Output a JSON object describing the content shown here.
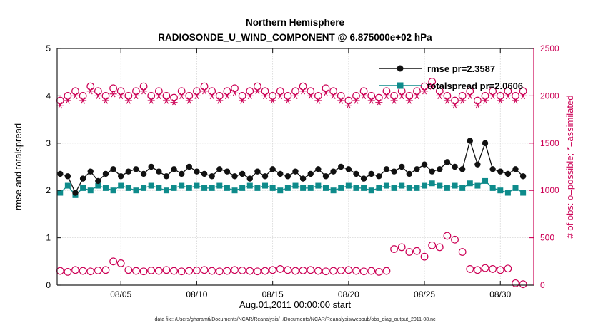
{
  "chart_data": {
    "type": "line",
    "title": "Northern Hemisphere",
    "subtitle": "RADIOSONDE_U_WIND_COMPONENT @ 6.875000e+02 hPa",
    "xlabel": "Aug.01,2011 00:00:00 start",
    "ylabel_left": "rmse and totalspread",
    "ylabel_right": "# of obs: o=possible; *=assimilated",
    "footer": "data file: /Users/gharamti/Documents/NCAR/Reanalysis/~/Documents/NCAR/Reanalysis/webpub/obs_diag_output_2011-08.nc",
    "grid": true,
    "xlim": [
      0.8,
      32.2
    ],
    "ylim_left": [
      0,
      5
    ],
    "ylim_right": [
      0,
      2500
    ],
    "x_ticks": [
      {
        "v": 5,
        "label": "08/05"
      },
      {
        "v": 10,
        "label": "08/10"
      },
      {
        "v": 15,
        "label": "08/15"
      },
      {
        "v": 20,
        "label": "08/20"
      },
      {
        "v": 25,
        "label": "08/25"
      },
      {
        "v": 30,
        "label": "08/30"
      }
    ],
    "y_ticks_left": [
      0,
      1,
      2,
      3,
      4,
      5
    ],
    "y_ticks_right": [
      0,
      500,
      1000,
      1500,
      2000,
      2500
    ],
    "x_start": 1,
    "x_step": 0.5,
    "colors": {
      "rmse": "#111111",
      "totalspread": "#0e8b8b",
      "obs": "#cc0055",
      "grid": "#d6d6d6",
      "axis": "#222222"
    },
    "legend": [
      {
        "label": "rmse pr=2.3587",
        "marker": "circle"
      },
      {
        "label": "totalspread pr=2.0606",
        "marker": "square"
      }
    ],
    "series": {
      "rmse": [
        2.35,
        2.3,
        1.95,
        2.25,
        2.4,
        2.2,
        2.35,
        2.45,
        2.3,
        2.4,
        2.45,
        2.35,
        2.5,
        2.4,
        2.3,
        2.45,
        2.35,
        2.5,
        2.4,
        2.35,
        2.3,
        2.45,
        2.4,
        2.3,
        2.35,
        2.25,
        2.4,
        2.3,
        2.45,
        2.35,
        2.3,
        2.4,
        2.25,
        2.35,
        2.45,
        2.3,
        2.4,
        2.5,
        2.45,
        2.35,
        2.25,
        2.35,
        2.3,
        2.45,
        2.4,
        2.5,
        2.35,
        2.45,
        2.55,
        2.4,
        2.45,
        2.6,
        2.5,
        2.45,
        3.05,
        2.55,
        3.0,
        2.45,
        2.4,
        2.35,
        2.45,
        2.3
      ],
      "totalspread": [
        1.95,
        2.1,
        1.9,
        2.05,
        2.0,
        2.1,
        2.05,
        2.0,
        2.1,
        2.05,
        2.0,
        2.05,
        2.1,
        2.05,
        2.0,
        2.05,
        2.1,
        2.05,
        2.1,
        2.05,
        2.05,
        2.1,
        2.05,
        2.0,
        2.05,
        2.1,
        2.05,
        2.1,
        2.05,
        2.0,
        2.05,
        2.1,
        2.05,
        2.05,
        2.1,
        2.05,
        2.0,
        2.05,
        2.1,
        2.05,
        2.05,
        2.0,
        2.05,
        2.1,
        2.05,
        2.1,
        2.05,
        2.05,
        2.1,
        2.15,
        2.1,
        2.05,
        2.1,
        2.05,
        2.15,
        2.1,
        2.2,
        2.05,
        2.0,
        1.95,
        2.05,
        1.95
      ],
      "possible": [
        1950,
        2000,
        2050,
        2000,
        2100,
        2050,
        2000,
        2080,
        2050,
        2000,
        2050,
        2100,
        2000,
        2050,
        2000,
        1980,
        2050,
        2000,
        2050,
        2100,
        2050,
        2000,
        2050,
        2080,
        2000,
        2050,
        2100,
        2050,
        2000,
        2050,
        2000,
        2050,
        2100,
        2050,
        2000,
        2080,
        2050,
        2000,
        1950,
        2000,
        2050,
        2000,
        1980,
        2050,
        2000,
        2050,
        2000,
        2050,
        2100,
        2150,
        2050,
        2000,
        1950,
        2000,
        2050,
        1950,
        2000,
        2050,
        2000,
        2050,
        2000,
        2050
      ],
      "assimilated": [
        1900,
        1950,
        2000,
        1950,
        2050,
        2000,
        1950,
        2020,
        2000,
        1950,
        2000,
        2050,
        1950,
        2000,
        1950,
        1930,
        2000,
        1950,
        2000,
        2050,
        2000,
        1950,
        2000,
        2030,
        1950,
        2000,
        2050,
        2000,
        1950,
        2000,
        1950,
        2000,
        2050,
        2000,
        1950,
        2030,
        2000,
        1950,
        1900,
        1950,
        2000,
        1950,
        1930,
        2000,
        1950,
        2000,
        1950,
        2000,
        2050,
        2100,
        2000,
        1950,
        1900,
        1950,
        2000,
        1900,
        1950,
        2000,
        1950,
        2000,
        1950,
        2000
      ],
      "possible_low": [
        150,
        140,
        160,
        150,
        145,
        155,
        160,
        250,
        230,
        160,
        150,
        145,
        155,
        150,
        160,
        150,
        145,
        150,
        155,
        160,
        150,
        145,
        150,
        160,
        155,
        150,
        145,
        150,
        160,
        170,
        160,
        150,
        155,
        160,
        150,
        145,
        150,
        155,
        160,
        150,
        145,
        150,
        140,
        150,
        380,
        400,
        350,
        360,
        300,
        420,
        400,
        520,
        480,
        350,
        170,
        160,
        180,
        170,
        160,
        175,
        20,
        10
      ]
    }
  }
}
